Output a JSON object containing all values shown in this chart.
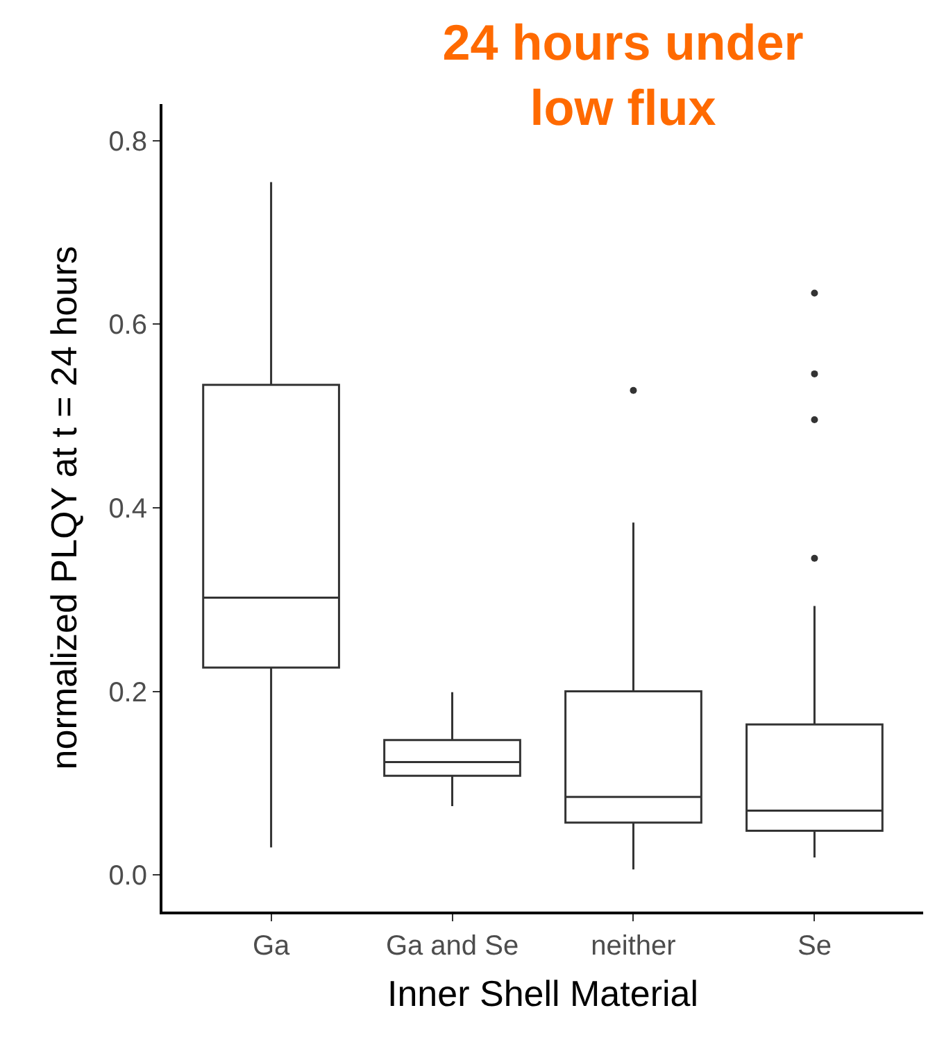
{
  "chart_data": {
    "type": "box",
    "title": "24 hours under\nlow flux",
    "xlabel": "Inner Shell Material",
    "ylabel": "normalized PLQY at t = 24 hours",
    "categories": [
      "Ga",
      "Ga and Se",
      "neither",
      "Se"
    ],
    "boxes": [
      {
        "low": 0.03,
        "q1": 0.226,
        "median": 0.302,
        "q3": 0.534,
        "high": 0.755
      },
      {
        "low": 0.075,
        "q1": 0.108,
        "median": 0.123,
        "q3": 0.147,
        "high": 0.199
      },
      {
        "low": 0.006,
        "q1": 0.057,
        "median": 0.085,
        "q3": 0.2,
        "high": 0.384,
        "outliers": [
          0.528
        ]
      },
      {
        "low": 0.019,
        "q1": 0.048,
        "median": 0.07,
        "q3": 0.164,
        "high": 0.293,
        "outliers": [
          0.345,
          0.496,
          0.546,
          0.634
        ]
      }
    ],
    "ylim": [
      -0.04,
      0.84
    ],
    "yticks": [
      {
        "value": 0,
        "label": "0.0"
      },
      0.2,
      0.4,
      0.6,
      0.8
    ]
  }
}
